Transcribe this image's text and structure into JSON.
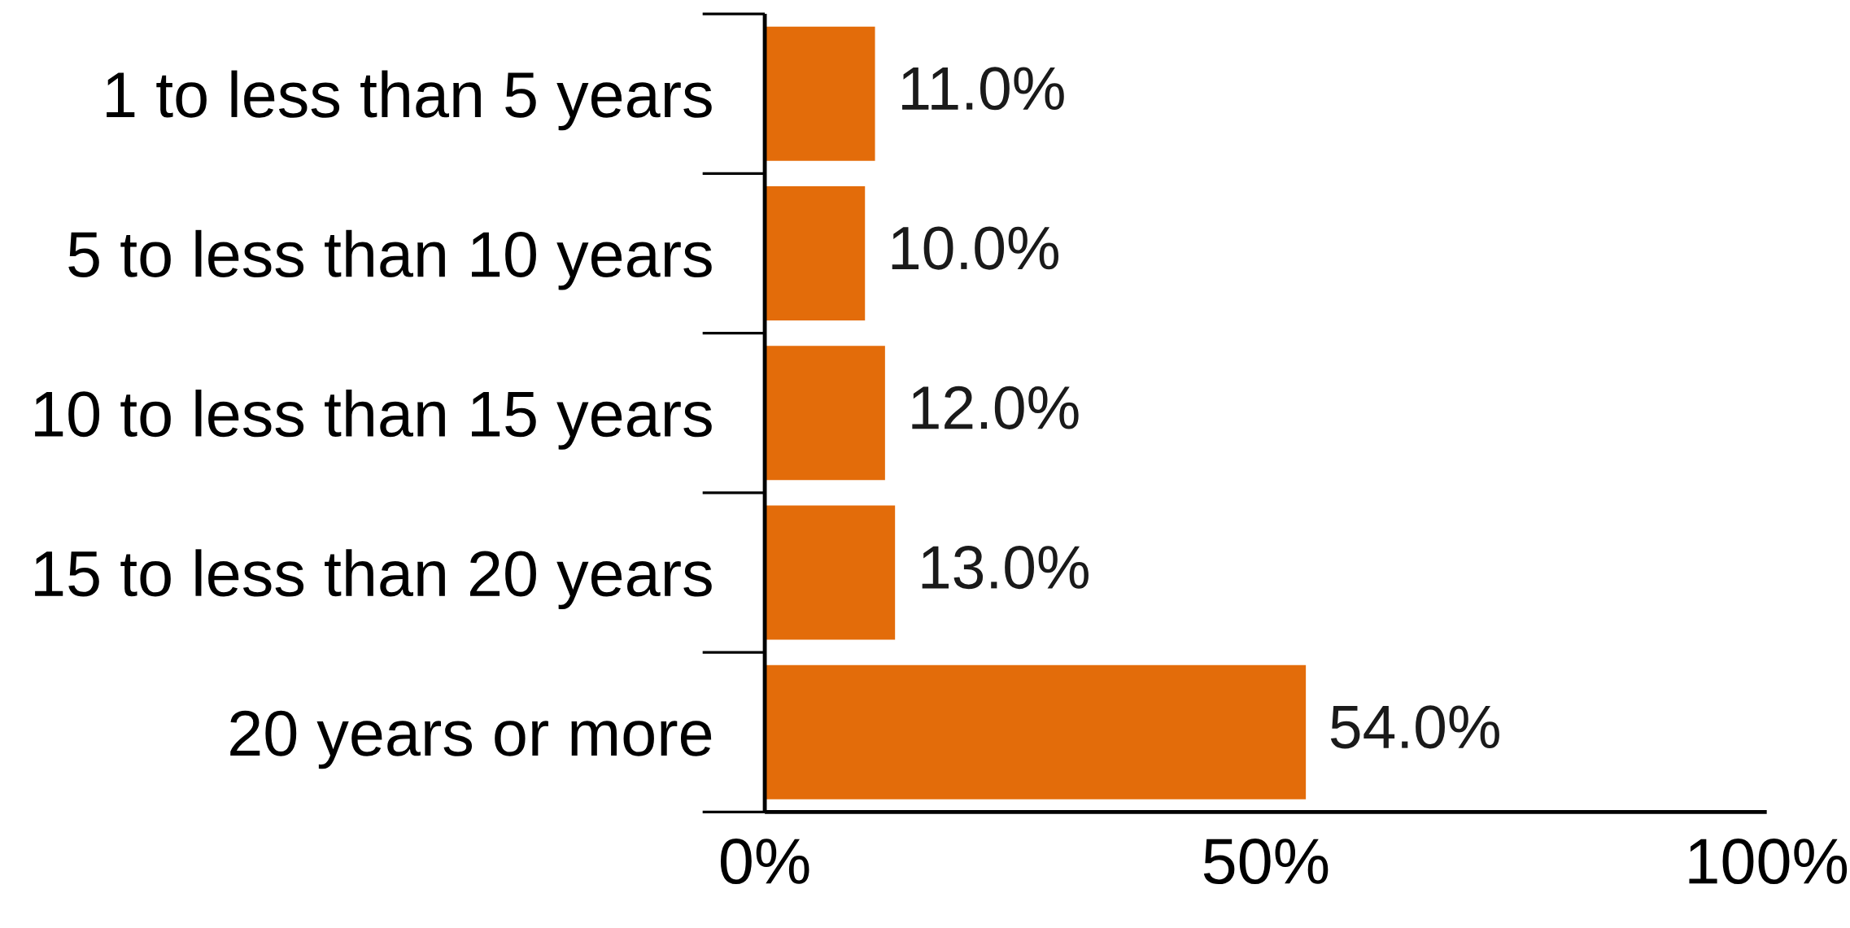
{
  "chart_data": {
    "type": "bar",
    "orientation": "horizontal",
    "categories": [
      "1 to less than 5 years",
      "5 to less than 10 years",
      "10 to less than 15 years",
      "15 to less than 20 years",
      "20 years or more"
    ],
    "values": [
      11,
      10,
      12,
      13,
      54
    ],
    "color": "#e36c0a",
    "value_labels": [
      "11.0%",
      "10.0%",
      "12.0%",
      "13.0%",
      "54.0%"
    ],
    "xlim": [
      0,
      100
    ],
    "xticks": [
      {
        "value": 0,
        "label": "0%"
      },
      {
        "value": 50,
        "label": "50%"
      },
      {
        "value": 100,
        "label": "100%"
      }
    ]
  }
}
